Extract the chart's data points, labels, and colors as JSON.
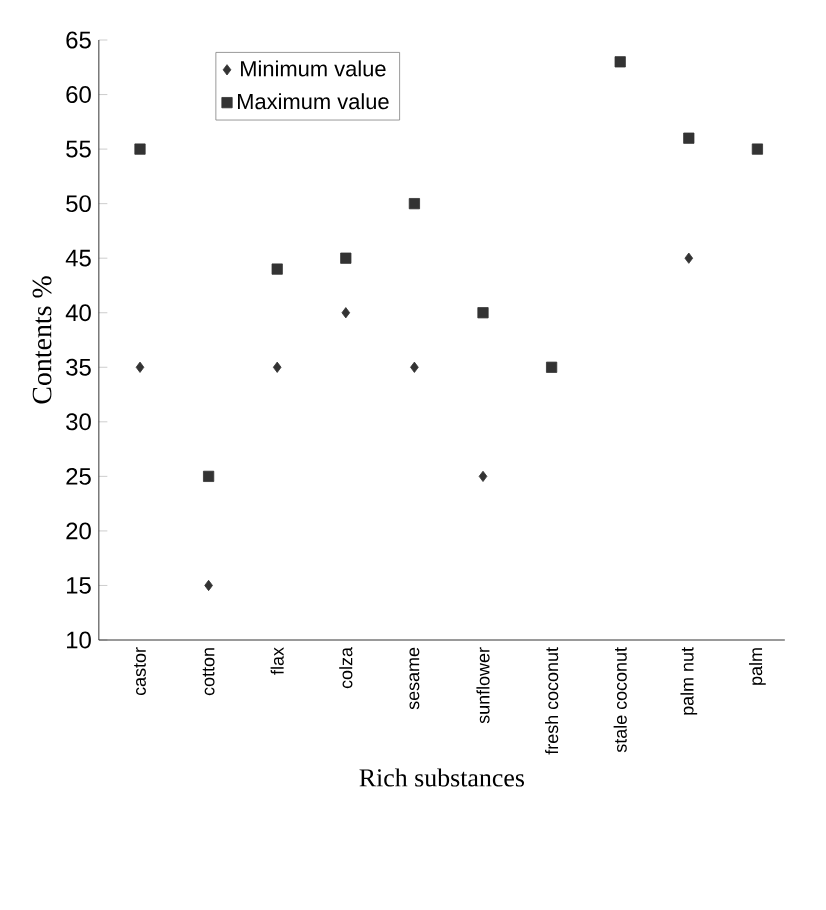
{
  "chart_data": {
    "type": "scatter",
    "xlabel": "Rich substances",
    "ylabel": "Contents %",
    "categories": [
      "castor",
      "cotton",
      "flax",
      "colza",
      "sesame",
      "sunflower",
      "fresh coconut",
      "stale coconut",
      "palm nut",
      "palm"
    ],
    "series": [
      {
        "name": "Minimum value",
        "color": "#333333",
        "marker": "diamond",
        "values": [
          35,
          15,
          35,
          40,
          35,
          25,
          null,
          null,
          45,
          null
        ]
      },
      {
        "name": "Maximum value",
        "color": "#333333",
        "marker": "square",
        "values": [
          55,
          25,
          44,
          45,
          50,
          40,
          35,
          63,
          56,
          55
        ]
      }
    ],
    "ylim": [
      10,
      65
    ],
    "yticks": [
      10,
      15,
      20,
      25,
      30,
      35,
      40,
      45,
      50,
      55,
      60,
      65
    ],
    "legend": "top left",
    "grid": false
  }
}
